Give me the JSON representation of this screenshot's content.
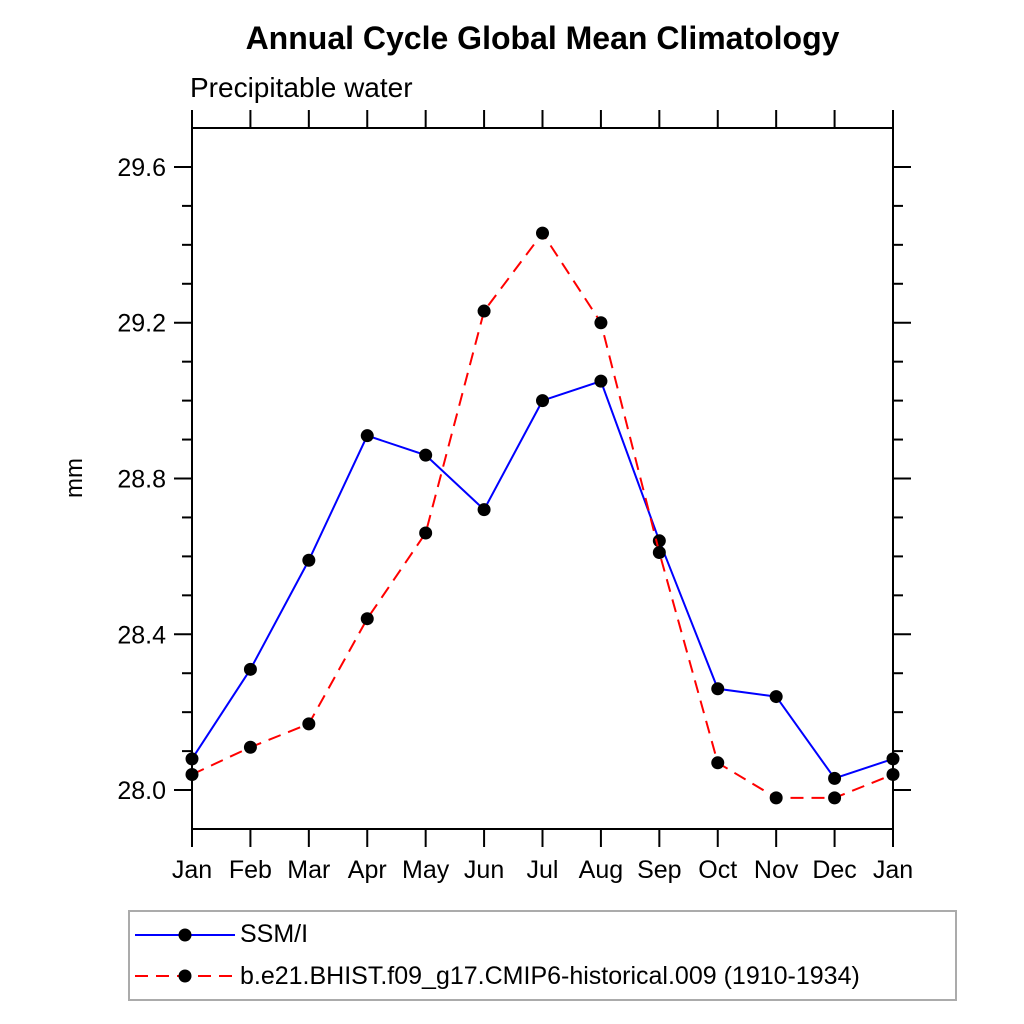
{
  "page": {
    "background": "#ffffff"
  },
  "chart_data": {
    "type": "line",
    "title": "Annual Cycle Global Mean Climatology",
    "subtitle": "Precipitable water",
    "ylabel": "mm",
    "xlabel": "",
    "categories": [
      "Jan",
      "Feb",
      "Mar",
      "Apr",
      "May",
      "Jun",
      "Jul",
      "Aug",
      "Sep",
      "Oct",
      "Nov",
      "Dec",
      "Jan"
    ],
    "series": [
      {
        "name": "SSM/I",
        "color": "#0000ff",
        "line_style": "solid",
        "marker": "filled-circle",
        "marker_color": "#000000",
        "values": [
          28.08,
          28.31,
          28.59,
          28.91,
          28.86,
          28.72,
          29.0,
          29.05,
          28.64,
          28.26,
          28.24,
          28.03,
          28.08
        ]
      },
      {
        "name": "b.e21.BHIST.f09_g17.CMIP6-historical.009 (1910-1934)",
        "color": "#ff0000",
        "line_style": "dashed",
        "marker": "filled-circle",
        "marker_color": "#000000",
        "values": [
          28.04,
          28.11,
          28.17,
          28.44,
          28.66,
          29.23,
          29.43,
          29.2,
          28.61,
          28.07,
          27.98,
          27.98,
          28.04
        ]
      }
    ],
    "ylim": [
      27.9,
      29.7
    ],
    "yticks_major": [
      28.0,
      28.4,
      28.8,
      29.2,
      29.6
    ],
    "ytick_labels": [
      "28.0",
      "28.4",
      "28.8",
      "29.2",
      "29.6"
    ],
    "ytick_minor_interval": 0.1,
    "grid": false,
    "legend_position": "bottom-left",
    "axis_color": "#000000",
    "legend_border_color": "#ababab"
  }
}
